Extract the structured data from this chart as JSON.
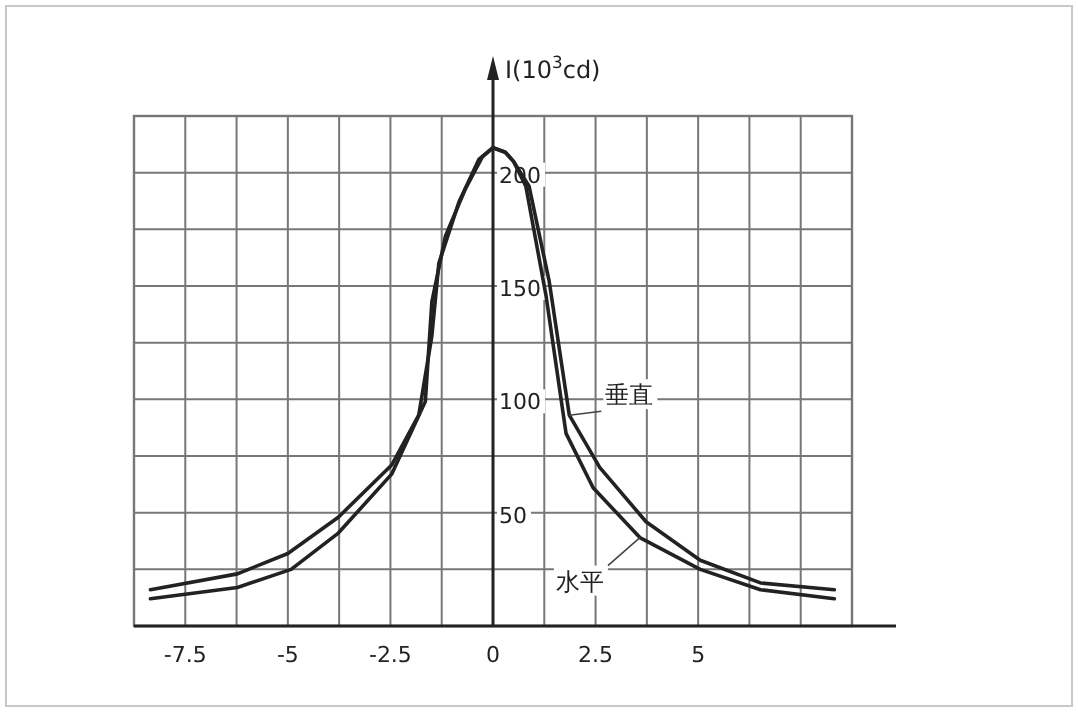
{
  "chart_data": {
    "type": "line",
    "ylabel": "I(10$^{3}$cd)",
    "xlim": [
      -8.75,
      8.75
    ],
    "ylim": [
      0,
      225
    ],
    "xticks": [
      {
        "value": -8.75,
        "label": null
      },
      -7.5,
      {
        "value": -6.25,
        "label": null
      },
      -5,
      {
        "value": -3.75,
        "label": null
      },
      -2.5,
      {
        "value": -1.25,
        "label": null
      },
      0,
      {
        "value": 1.25,
        "label": null
      },
      2.5,
      {
        "value": 3.75,
        "label": null
      },
      5,
      {
        "value": 6.25,
        "label": null
      },
      {
        "value": 7.5,
        "label": null
      },
      {
        "value": 8.75,
        "label": null
      }
    ],
    "yticks": [
      {
        "value": 25,
        "label": null
      },
      50,
      {
        "value": 75,
        "label": null
      },
      100,
      {
        "value": 125,
        "label": null
      },
      150,
      {
        "value": 175,
        "label": null
      },
      200,
      {
        "value": 225,
        "label": null
      }
    ],
    "grid": true,
    "marker": "none",
    "line_style": "solid",
    "series": [
      {
        "name": "垂直",
        "color": "#222222",
        "x": [
          -8.35,
          -6.23,
          -5,
          -3.77,
          -2.47,
          -1.81,
          -1.49,
          -1.32,
          -0.83,
          -0.34,
          0,
          0.3,
          0.5,
          0.88,
          1.37,
          1.86,
          2.6,
          3.73,
          5.05,
          6.52,
          8.32
        ],
        "values": [
          16,
          23,
          32,
          48,
          71,
          93,
          128,
          160,
          187,
          206,
          211,
          209,
          205,
          194,
          152,
          93,
          70,
          46,
          29,
          19,
          16
        ]
      },
      {
        "name": "水平",
        "color": "#222222",
        "x": [
          -8.35,
          -6.23,
          -4.92,
          -3.77,
          -2.47,
          -1.65,
          -1.49,
          -1.16,
          -0.67,
          -0.26,
          0,
          0.3,
          0.5,
          0.8,
          1.29,
          1.78,
          2.44,
          3.58,
          5.05,
          6.52,
          8.32
        ],
        "values": [
          12,
          17,
          25,
          41,
          67,
          99,
          143,
          172,
          193,
          207,
          211,
          209,
          205,
          194,
          146,
          85,
          61,
          39,
          25,
          16,
          12
        ]
      }
    ]
  }
}
